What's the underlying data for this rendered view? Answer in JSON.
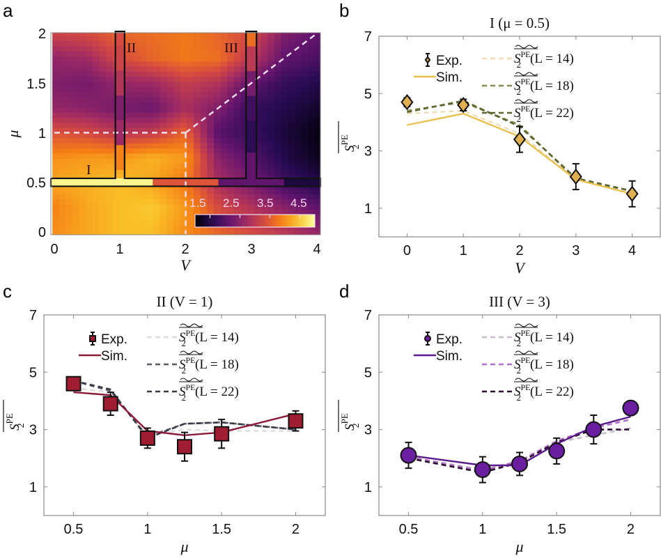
{
  "panels": {
    "a": {
      "letter": "a",
      "xlabel": "V",
      "ylabel": "μ",
      "xticks": [
        "0",
        "1",
        "2",
        "3",
        "4"
      ],
      "yticks": [
        "0",
        "0.5",
        "1",
        "1.5",
        "2"
      ],
      "region_labels": [
        "I",
        "II",
        "III"
      ],
      "colorbar": {
        "ticks": [
          "1.5",
          "2.5",
          "3.5",
          "4.5"
        ],
        "range": [
          1.0,
          5.0
        ]
      }
    },
    "b": {
      "letter": "b"
    },
    "c": {
      "letter": "c"
    },
    "d": {
      "letter": "d"
    }
  },
  "legend": {
    "exp": "Exp.",
    "sim": "Sim.",
    "l14": "(L = 14)",
    "l18": "(L = 18)",
    "l22": "(L = 22)",
    "sym": "S",
    "sub": "2",
    "sup": "PE"
  },
  "chart_data": [
    {
      "id": "a",
      "type": "heatmap",
      "title": "",
      "xlabel": "V",
      "ylabel": "μ",
      "xlim": [
        0,
        4
      ],
      "ylim": [
        0,
        2
      ],
      "colormap": "inferno",
      "color_range": [
        1.0,
        5.0
      ],
      "colorbar_ticks": [
        1.5,
        2.5,
        3.5,
        4.5
      ],
      "grid_V": [
        0,
        0.5,
        1,
        1.5,
        2,
        2.5,
        3,
        3.5,
        4
      ],
      "grid_mu": [
        0,
        0.25,
        0.5,
        0.75,
        1,
        1.25,
        1.5,
        1.75,
        2
      ],
      "values_by_mu_row": [
        [
          4.0,
          4.2,
          4.4,
          4.4,
          4.0,
          3.6,
          3.3,
          3.0,
          2.6
        ],
        [
          3.9,
          4.2,
          4.4,
          4.5,
          4.1,
          3.3,
          2.9,
          2.5,
          2.1
        ],
        [
          4.2,
          4.3,
          4.4,
          4.2,
          3.8,
          2.8,
          2.3,
          1.8,
          1.5
        ],
        [
          4.0,
          4.1,
          4.1,
          4.3,
          4.1,
          2.5,
          2.0,
          1.5,
          1.2
        ],
        [
          3.4,
          3.3,
          3.0,
          3.1,
          3.6,
          2.0,
          1.7,
          1.4,
          1.1
        ],
        [
          2.6,
          2.5,
          2.3,
          2.2,
          2.8,
          2.4,
          1.7,
          1.5,
          1.3
        ],
        [
          2.4,
          2.3,
          2.6,
          2.7,
          3.1,
          2.9,
          2.1,
          1.7,
          1.5
        ],
        [
          2.6,
          2.7,
          3.3,
          3.6,
          3.8,
          3.7,
          3.0,
          2.1,
          1.9
        ],
        [
          3.2,
          3.3,
          3.6,
          3.7,
          3.8,
          3.6,
          3.3,
          2.4,
          2.1
        ]
      ],
      "cut_I": {
        "label": "I",
        "mu": 0.5,
        "V": [
          0,
          1,
          2,
          3,
          4
        ],
        "values": [
          4.9,
          4.9,
          3.4,
          2.1,
          1.4
        ]
      },
      "cut_II": {
        "label": "II",
        "V": 1,
        "mu": [
          0.5,
          0.75,
          1,
          1.25,
          1.5,
          1.75,
          2
        ],
        "values": [
          4.6,
          3.9,
          2.7,
          2.4,
          2.9,
          3.2,
          3.3
        ]
      },
      "cut_III": {
        "label": "III",
        "V": 3,
        "mu": [
          0.5,
          1,
          1.25,
          1.5,
          1.75,
          2
        ],
        "values": [
          2.1,
          1.6,
          1.8,
          2.3,
          3.0,
          3.7
        ]
      },
      "annotations": [
        "dashed boundary μ = 1 for V ≤ 2",
        "dashed boundary V = 2 for μ ≤ 1",
        "dashed diagonal μ = V/2 for V ≥ 2"
      ]
    },
    {
      "id": "b",
      "type": "line",
      "title": "I (μ = 0.5)",
      "xlabel": "V",
      "ylabel": "S2PE (averaged)",
      "xlim": [
        -0.5,
        4.5
      ],
      "ylim": [
        0,
        7
      ],
      "xticks": [
        0,
        1,
        2,
        3,
        4
      ],
      "yticks": [
        1,
        3,
        5,
        7
      ],
      "legend_position": "top",
      "colors": {
        "exp": "#e0b050",
        "sim": "#e8c050",
        "l14": "#eedcb8",
        "l18": "#8a8a50",
        "l22": "#5e6630"
      },
      "x": [
        0,
        1,
        2,
        3,
        4
      ],
      "series": [
        {
          "name": "Exp.",
          "marker": "diamond",
          "values": [
            4.7,
            4.6,
            3.4,
            2.1,
            1.5
          ],
          "err": [
            0.15,
            0.2,
            0.45,
            0.45,
            0.45
          ]
        },
        {
          "name": "Sim.",
          "style": "solid",
          "values": [
            3.9,
            4.3,
            3.5,
            2.0,
            1.5
          ]
        },
        {
          "name": "L = 14",
          "style": "dashed",
          "values": [
            4.3,
            4.4,
            3.6,
            2.0,
            1.5
          ]
        },
        {
          "name": "L = 18",
          "style": "dashed",
          "values": [
            4.4,
            4.7,
            3.9,
            2.0,
            1.6
          ]
        },
        {
          "name": "L = 22",
          "style": "dashed",
          "values": [
            4.35,
            4.75,
            3.85,
            2.05,
            1.6
          ]
        }
      ]
    },
    {
      "id": "c",
      "type": "line",
      "title": "II (V = 1)",
      "xlabel": "μ",
      "ylabel": "S2PE (averaged)",
      "xlim": [
        0.3,
        2.2
      ],
      "ylim": [
        0,
        7
      ],
      "xticks": [
        0.5,
        1,
        1.5,
        2
      ],
      "yticks": [
        1,
        3,
        5,
        7
      ],
      "legend_position": "top",
      "colors": {
        "exp": "#a01c30",
        "sim": "#8c1a3a",
        "l14": "#dcdcdc",
        "l18": "#5a5a66",
        "l22": "#3a3a48"
      },
      "x": [
        0.5,
        0.75,
        1,
        1.25,
        1.5,
        2
      ],
      "series": [
        {
          "name": "Exp.",
          "marker": "square",
          "values": [
            4.6,
            3.9,
            2.7,
            2.4,
            2.85,
            3.3
          ],
          "err": [
            0.1,
            0.4,
            0.35,
            0.5,
            0.5,
            0.35
          ]
        },
        {
          "name": "Sim.",
          "style": "solid",
          "values": [
            4.3,
            4.2,
            2.95,
            2.8,
            2.9,
            3.55
          ]
        },
        {
          "name": "L = 14",
          "style": "dashed",
          "values": [
            4.45,
            4.3,
            2.8,
            3.0,
            2.95,
            2.95
          ]
        },
        {
          "name": "L = 18",
          "style": "dashed",
          "values": [
            4.7,
            4.35,
            2.75,
            3.2,
            3.25,
            3.0
          ]
        },
        {
          "name": "L = 22",
          "style": "dashed",
          "values": [
            4.7,
            4.4,
            2.7,
            3.2,
            3.25,
            3.0
          ]
        }
      ]
    },
    {
      "id": "d",
      "type": "line",
      "title": "III (V = 3)",
      "xlabel": "μ",
      "ylabel": "S2PE (averaged)",
      "xlim": [
        0.3,
        2.2
      ],
      "ylim": [
        0,
        7
      ],
      "xticks": [
        0.5,
        1,
        1.5,
        2
      ],
      "yticks": [
        1,
        3,
        5,
        7
      ],
      "legend_position": "top",
      "colors": {
        "exp": "#6a1ea0",
        "sim": "#5a1a8a",
        "l14": "#c8bcc8",
        "l18": "#b070c8",
        "l22": "#2a1030"
      },
      "x": [
        0.5,
        1,
        1.25,
        1.5,
        1.75,
        2
      ],
      "series": [
        {
          "name": "Exp.",
          "marker": "circle",
          "values": [
            2.1,
            1.6,
            1.8,
            2.25,
            3.0,
            3.75
          ],
          "err": [
            0.45,
            0.45,
            0.4,
            0.45,
            0.5,
            0.2
          ]
        },
        {
          "name": "Sim.",
          "style": "solid",
          "values": [
            2.1,
            1.75,
            1.75,
            2.5,
            3.1,
            3.45
          ]
        },
        {
          "name": "L = 14",
          "style": "dashed",
          "values": [
            2.05,
            1.6,
            1.9,
            2.55,
            2.8,
            3.05
          ]
        },
        {
          "name": "L = 18",
          "style": "dashed",
          "values": [
            2.05,
            1.55,
            1.9,
            2.6,
            3.05,
            3.35
          ]
        },
        {
          "name": "L = 22",
          "style": "dashed",
          "values": [
            2.0,
            1.5,
            1.85,
            2.55,
            3.0,
            3.0
          ]
        }
      ]
    }
  ]
}
